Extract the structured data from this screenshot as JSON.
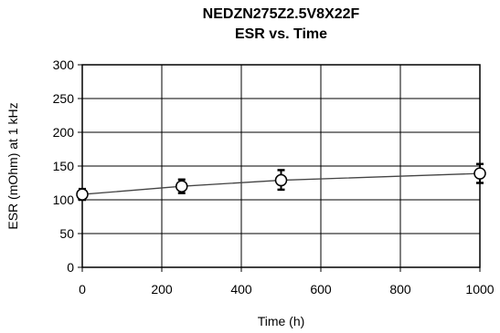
{
  "chart_data": {
    "type": "line",
    "title": "NEDZN275Z2.5V8X22F",
    "subtitle": "ESR vs. Time",
    "xlabel": "Time (h)",
    "ylabel": "ESR (mOhm) at 1 kHz",
    "xlim": [
      0,
      1000
    ],
    "ylim": [
      0,
      300
    ],
    "xticks": [
      0,
      200,
      400,
      600,
      800,
      1000
    ],
    "yticks": [
      0,
      50,
      100,
      150,
      200,
      250,
      300
    ],
    "grid": true,
    "series": [
      {
        "x": [
          0,
          250,
          500,
          1000
        ],
        "y": [
          108,
          120,
          129,
          139
        ],
        "y_min": [
          100,
          110,
          115,
          125
        ],
        "y_max": [
          116,
          130,
          144,
          153
        ],
        "color": "#000000",
        "marker": "open-circle"
      }
    ]
  }
}
